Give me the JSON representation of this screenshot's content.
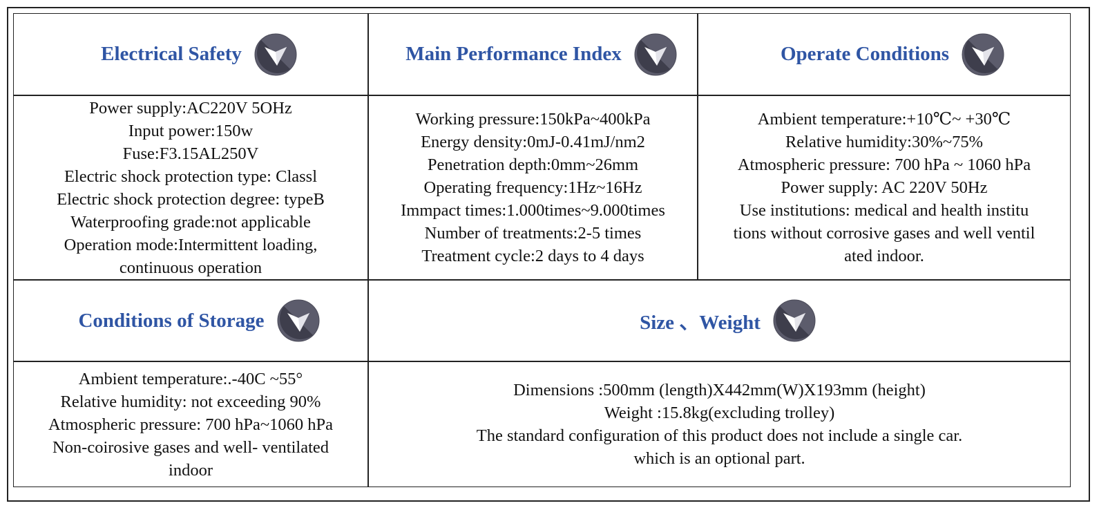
{
  "sections": [
    {
      "title": "Electrical Safety",
      "lines": [
        "Power supply:AC220V 5OHz",
        "Input power:150w",
        "Fuse:F3.15AL250V",
        "Electric shock protection type: Classl",
        "Electric shock protection degree: typeB",
        "Waterproofing grade:not applicable",
        "Operation mode:Intermittent loading,",
        "continuous operation"
      ]
    },
    {
      "title": "Main Performance Index",
      "lines": [
        "Working pressure:150kPa~400kPa",
        "Energy density:0mJ-0.41mJ/nm2",
        "Penetration depth:0mm~26mm",
        "Operating frequency:1Hz~16Hz",
        "Immpact times:1.000times~9.000times",
        "Number of treatments:2-5 times",
        "Treatment cycle:2 days to 4 days"
      ]
    },
    {
      "title": "Operate Conditions",
      "lines": [
        "Ambient temperature:+10℃~ +30℃",
        "Relative humidity:30%~75%",
        "Atmospheric pressure: 700 hPa ~ 1060 hPa",
        "Power supply: AC 220V 50Hz",
        "Use institutions: medical and health institu",
        "tions without corrosive gases and well ventil",
        "ated indoor."
      ]
    },
    {
      "title": "Conditions of Storage",
      "lines": [
        "Ambient temperature:.-40C ~55°",
        "Relative humidity: not exceeding 90%",
        "Atmospheric pressure: 700 hPa~1060 hPa",
        "Non-coirosive gases and well- ventilated",
        "indoor"
      ]
    },
    {
      "title": "Size 、Weight",
      "lines": [
        "Dimensions :500mm (length)X442mm(W)X193mm (height)",
        "Weight :15.8kg(excluding trolley)",
        "The standard configuration of this product does not include a single car.",
        "which is an optional part."
      ]
    }
  ]
}
